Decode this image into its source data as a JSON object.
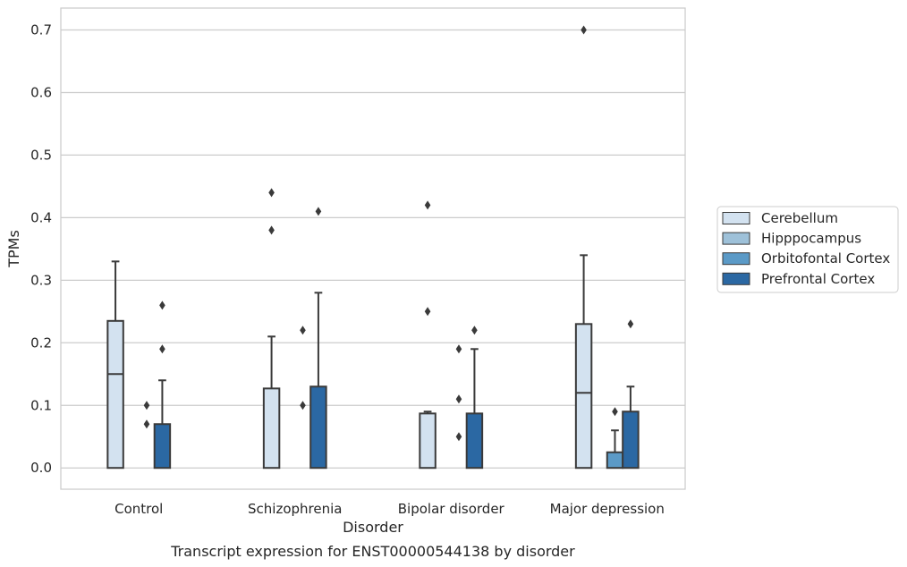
{
  "chart_data": {
    "type": "box",
    "xlabel": "Disorder",
    "ylabel": "TPMs",
    "caption": "Transcript expression for ENST00000544138 by disorder",
    "ylim": [
      -0.034,
      0.735
    ],
    "yticks": [
      "0.0",
      "0.1",
      "0.2",
      "0.3",
      "0.4",
      "0.5",
      "0.6",
      "0.7"
    ],
    "grid": "horizontal",
    "legend_position": "right",
    "categories": [
      "Control",
      "Schizophrenia",
      "Bipolar disorder",
      "Major depression"
    ],
    "series": [
      {
        "name": "Cerebellum",
        "color": "#d3e2f0",
        "boxes": [
          {
            "q1": 0.0,
            "median": 0.15,
            "q3": 0.235,
            "whisker_low": 0.0,
            "whisker_high": 0.33,
            "outliers": []
          },
          {
            "q1": 0.0,
            "median": 0.0,
            "q3": 0.127,
            "whisker_low": 0.0,
            "whisker_high": 0.21,
            "outliers": [
              0.38,
              0.44
            ]
          },
          {
            "q1": 0.0,
            "median": 0.0,
            "q3": 0.087,
            "whisker_low": 0.0,
            "whisker_high": 0.09,
            "outliers": [
              0.25,
              0.42
            ]
          },
          {
            "q1": 0.0,
            "median": 0.12,
            "q3": 0.23,
            "whisker_low": 0.0,
            "whisker_high": 0.34,
            "outliers": [
              0.7
            ]
          }
        ]
      },
      {
        "name": "Hipppocampus",
        "color": "#9ec1d9",
        "boxes": [
          {
            "q1": 0.0,
            "median": 0.0,
            "q3": 0.0,
            "whisker_low": 0.0,
            "whisker_high": 0.0,
            "outliers": []
          },
          {
            "q1": 0.0,
            "median": 0.0,
            "q3": 0.0,
            "whisker_low": 0.0,
            "whisker_high": 0.0,
            "outliers": []
          },
          {
            "q1": 0.0,
            "median": 0.0,
            "q3": 0.0,
            "whisker_low": 0.0,
            "whisker_high": 0.0,
            "outliers": []
          },
          {
            "q1": 0.0,
            "median": 0.0,
            "q3": 0.0,
            "whisker_low": 0.0,
            "whisker_high": 0.0,
            "outliers": []
          }
        ]
      },
      {
        "name": "Orbitofontal Cortex",
        "color": "#5b9ac7",
        "boxes": [
          {
            "q1": 0.0,
            "median": 0.0,
            "q3": 0.0,
            "whisker_low": 0.0,
            "whisker_high": 0.0,
            "outliers": [
              0.07,
              0.1
            ]
          },
          {
            "q1": 0.0,
            "median": 0.0,
            "q3": 0.0,
            "whisker_low": 0.0,
            "whisker_high": 0.0,
            "outliers": [
              0.1,
              0.22
            ]
          },
          {
            "q1": 0.0,
            "median": 0.0,
            "q3": 0.0,
            "whisker_low": 0.0,
            "whisker_high": 0.0,
            "outliers": [
              0.05,
              0.11,
              0.19
            ]
          },
          {
            "q1": 0.0,
            "median": 0.0,
            "q3": 0.025,
            "whisker_low": 0.0,
            "whisker_high": 0.06,
            "outliers": [
              0.09
            ]
          }
        ]
      },
      {
        "name": "Prefrontal Cortex",
        "color": "#2b68a3",
        "boxes": [
          {
            "q1": 0.0,
            "median": 0.0,
            "q3": 0.07,
            "whisker_low": 0.0,
            "whisker_high": 0.14,
            "outliers": [
              0.19,
              0.26
            ]
          },
          {
            "q1": 0.0,
            "median": 0.0,
            "q3": 0.13,
            "whisker_low": 0.0,
            "whisker_high": 0.28,
            "outliers": [
              0.41
            ]
          },
          {
            "q1": 0.0,
            "median": 0.0,
            "q3": 0.087,
            "whisker_low": 0.0,
            "whisker_high": 0.19,
            "outliers": [
              0.22
            ]
          },
          {
            "q1": 0.0,
            "median": 0.0,
            "q3": 0.09,
            "whisker_low": 0.0,
            "whisker_high": 0.13,
            "outliers": [
              0.23
            ]
          }
        ]
      }
    ]
  }
}
